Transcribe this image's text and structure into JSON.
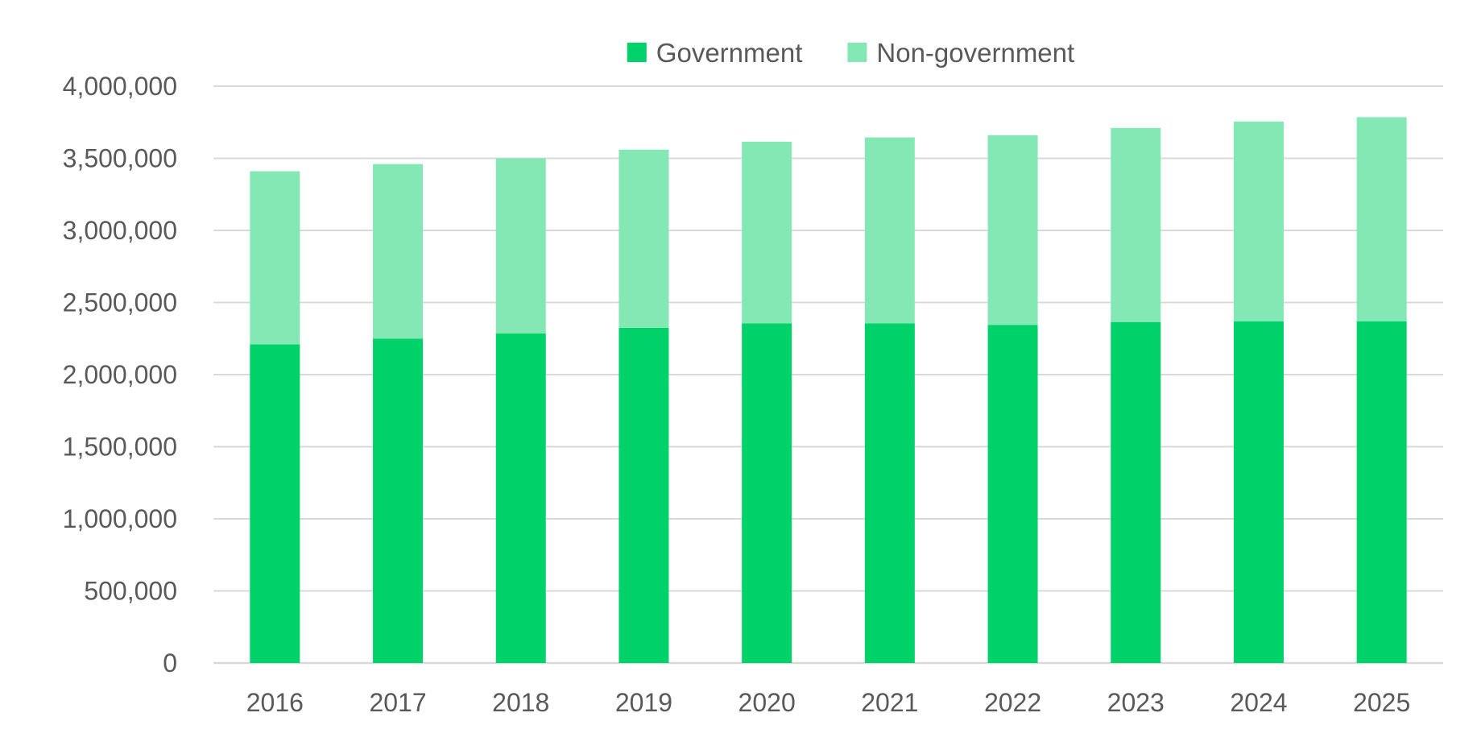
{
  "chart_data": {
    "type": "bar",
    "stacked": true,
    "title": "",
    "xlabel": "",
    "ylabel": "",
    "categories": [
      "2016",
      "2017",
      "2018",
      "2019",
      "2020",
      "2021",
      "2022",
      "2023",
      "2024",
      "2025"
    ],
    "series": [
      {
        "name": "Government",
        "color": "#00d26a",
        "values": [
          2210000,
          2250000,
          2285000,
          2325000,
          2355000,
          2355000,
          2345000,
          2365000,
          2370000,
          2370000
        ]
      },
      {
        "name": "Non-government",
        "color": "#84e8b4",
        "values": [
          1200000,
          1210000,
          1215000,
          1235000,
          1260000,
          1290000,
          1315000,
          1345000,
          1385000,
          1415000
        ]
      }
    ],
    "ylim": [
      0,
      4000000
    ],
    "yticks": [
      "0",
      "500,000",
      "1,000,000",
      "1,500,000",
      "2,000,000",
      "2,500,000",
      "3,000,000",
      "3,500,000",
      "4,000,000"
    ],
    "grid": true,
    "legend_position": "top-center"
  }
}
